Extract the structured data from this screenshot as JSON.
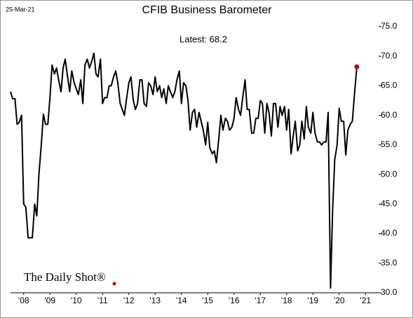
{
  "chart_data": {
    "type": "line",
    "date": "25-Mar-21",
    "title": "CFIB Business Barometer",
    "annotation": "Latest:  68.2",
    "logo": "The Daily Shot®",
    "x": [
      2008,
      2008.08,
      2008.17,
      2008.25,
      2008.33,
      2008.42,
      2008.5,
      2008.58,
      2008.67,
      2008.75,
      2008.83,
      2008.92,
      2009,
      2009.08,
      2009.17,
      2009.25,
      2009.33,
      2009.42,
      2009.5,
      2009.58,
      2009.67,
      2009.75,
      2009.83,
      2009.92,
      2010,
      2010.08,
      2010.17,
      2010.25,
      2010.33,
      2010.42,
      2010.5,
      2010.58,
      2010.67,
      2010.75,
      2010.83,
      2010.92,
      2011,
      2011.08,
      2011.17,
      2011.25,
      2011.33,
      2011.42,
      2011.5,
      2011.58,
      2011.67,
      2011.75,
      2011.83,
      2011.92,
      2012,
      2012.08,
      2012.17,
      2012.25,
      2012.33,
      2012.42,
      2012.5,
      2012.58,
      2012.67,
      2012.75,
      2012.83,
      2012.92,
      2013,
      2013.08,
      2013.17,
      2013.25,
      2013.33,
      2013.42,
      2013.5,
      2013.58,
      2013.67,
      2013.75,
      2013.83,
      2013.92,
      2014,
      2014.08,
      2014.17,
      2014.25,
      2014.33,
      2014.42,
      2014.5,
      2014.58,
      2014.67,
      2014.75,
      2014.83,
      2014.92,
      2015,
      2015.08,
      2015.17,
      2015.25,
      2015.33,
      2015.42,
      2015.5,
      2015.58,
      2015.67,
      2015.75,
      2015.83,
      2015.92,
      2016,
      2016.08,
      2016.17,
      2016.25,
      2016.33,
      2016.42,
      2016.5,
      2016.58,
      2016.67,
      2016.75,
      2016.83,
      2016.92,
      2017,
      2017.08,
      2017.17,
      2017.25,
      2017.33,
      2017.42,
      2017.5,
      2017.58,
      2017.67,
      2017.75,
      2017.83,
      2017.92,
      2018,
      2018.08,
      2018.17,
      2018.25,
      2018.33,
      2018.42,
      2018.5,
      2018.58,
      2018.67,
      2018.75,
      2018.83,
      2018.92,
      2019,
      2019.08,
      2019.17,
      2019.25,
      2019.33,
      2019.42,
      2019.5,
      2019.58,
      2019.67,
      2019.75,
      2019.83,
      2019.92,
      2020,
      2020.08,
      2020.17,
      2020.25,
      2020.33,
      2020.42,
      2020.5,
      2020.58,
      2020.67,
      2020.75,
      2020.83,
      2020.92,
      2021,
      2021.08,
      2021.17
    ],
    "series": [
      {
        "name": "CFIB Business Barometer",
        "color": "#000000",
        "last_point_color": "#c00000",
        "values": [
          64,
          62.8,
          62.8,
          58.5,
          58.8,
          60,
          45,
          44.5,
          39.3,
          39.3,
          39.3,
          45,
          43,
          50,
          55,
          60.2,
          58.5,
          58.5,
          63,
          68.5,
          67,
          68,
          66,
          64,
          68,
          69.5,
          66.5,
          64,
          67.5,
          65.5,
          64.5,
          63.5,
          66,
          62,
          68.5,
          69.5,
          68,
          69,
          70.5,
          67,
          66.5,
          69.5,
          62,
          63,
          63,
          65,
          65,
          66.5,
          67.5,
          65.5,
          62,
          61,
          60,
          63,
          65.5,
          66.5,
          62.5,
          61,
          62,
          66,
          66,
          62,
          61.5,
          65.5,
          65,
          63.5,
          66.5,
          64,
          65,
          63,
          64.5,
          62,
          65,
          64,
          63,
          64,
          66,
          67.5,
          62,
          65.5,
          65,
          62.5,
          57.5,
          60.5,
          61,
          58,
          60.5,
          59,
          57.5,
          55,
          58.8,
          54.5,
          53.5,
          54,
          52,
          56,
          60,
          57.5,
          59.5,
          59,
          57.5,
          58,
          59.5,
          63,
          61,
          60,
          63,
          66,
          61,
          61,
          57,
          57,
          59.5,
          59.5,
          62.5,
          62,
          57,
          62,
          60.5,
          56.5,
          62,
          62,
          58,
          61.5,
          60,
          61.5,
          57.5,
          61,
          53.5,
          56.5,
          59,
          54,
          55,
          59,
          56,
          61.5,
          58,
          57,
          60.5,
          57,
          55.5,
          55.5,
          55,
          55.5,
          55.5,
          60.5,
          30.8,
          44,
          52.5,
          55,
          61.2,
          59,
          59,
          53.3,
          57.5,
          58.5,
          59,
          63.5,
          68.2
        ]
      }
    ],
    "xlim": [
      2008,
      2022
    ],
    "xticks": [
      {
        "value": 2008.5,
        "label": "'08"
      },
      {
        "value": 2009.5,
        "label": "'09"
      },
      {
        "value": 2010.5,
        "label": "'10"
      },
      {
        "value": 2011.5,
        "label": "'11"
      },
      {
        "value": 2012.5,
        "label": "'12"
      },
      {
        "value": 2013.5,
        "label": "'13"
      },
      {
        "value": 2014.5,
        "label": "'14"
      },
      {
        "value": 2015.5,
        "label": "'15"
      },
      {
        "value": 2016.5,
        "label": "'16"
      },
      {
        "value": 2017.5,
        "label": "'17"
      },
      {
        "value": 2018.5,
        "label": "'18"
      },
      {
        "value": 2019.5,
        "label": "'19"
      },
      {
        "value": 2020.5,
        "label": "'20"
      },
      {
        "value": 2021.5,
        "label": "'21"
      }
    ],
    "ylim": [
      30,
      75
    ],
    "yticks": [
      {
        "value": 30,
        "label": "30.0"
      },
      {
        "value": 35,
        "label": "35.0"
      },
      {
        "value": 40,
        "label": "40.0"
      },
      {
        "value": 45,
        "label": "45.0"
      },
      {
        "value": 50,
        "label": "50.0"
      },
      {
        "value": 55,
        "label": "55.0"
      },
      {
        "value": 60,
        "label": "60.0"
      },
      {
        "value": 65,
        "label": "65.0"
      },
      {
        "value": 70,
        "label": "70.0"
      },
      {
        "value": 75,
        "label": "75.0"
      }
    ],
    "grid": false
  }
}
